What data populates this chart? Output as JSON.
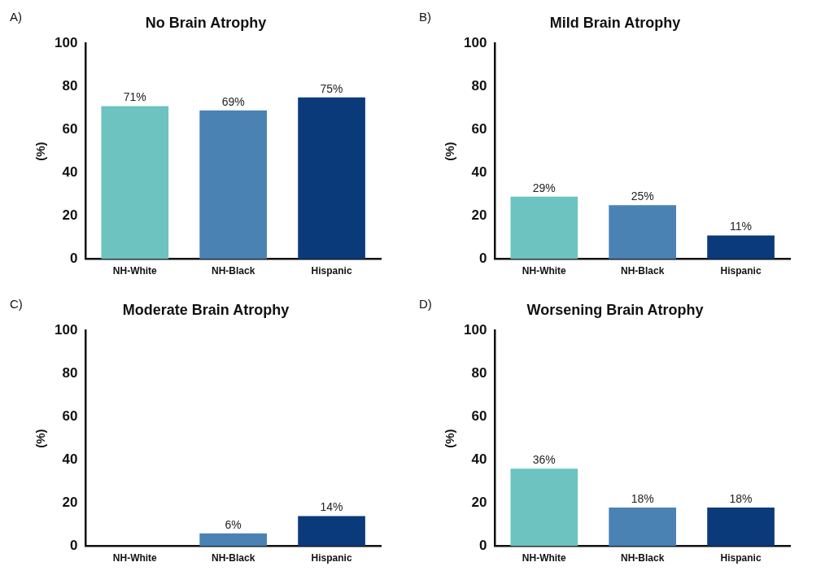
{
  "chart_data": [
    {
      "type": "bar",
      "title": "No Brain Atrophy",
      "annotations": [
        "A)"
      ],
      "ylabel": "(%)",
      "categories": [
        "NH-White",
        "NH-Black",
        "Hispanic"
      ],
      "values": [
        71,
        69,
        75
      ],
      "colors": [
        "#6cc3bf",
        "#4a82b4",
        "#0b3a7a"
      ],
      "value_labels": [
        "71%",
        "69%",
        "75%"
      ],
      "ylim": [
        0,
        100
      ],
      "yticks": [
        0,
        20,
        40,
        60,
        80,
        100
      ]
    },
    {
      "type": "bar",
      "title": "Mild Brain Atrophy",
      "annotations": [
        "B)"
      ],
      "ylabel": "(%)",
      "categories": [
        "NH-White",
        "NH-Black",
        "Hispanic"
      ],
      "values": [
        29,
        25,
        11
      ],
      "colors": [
        "#6cc3bf",
        "#4a82b4",
        "#0b3a7a"
      ],
      "value_labels": [
        "29%",
        "25%",
        "11%"
      ],
      "ylim": [
        0,
        100
      ],
      "yticks": [
        0,
        20,
        40,
        60,
        80,
        100
      ]
    },
    {
      "type": "bar",
      "title": "Moderate Brain Atrophy",
      "annotations": [
        "C)"
      ],
      "ylabel": "(%)",
      "categories": [
        "NH-White",
        "NH-Black",
        "Hispanic"
      ],
      "values": [
        0,
        6,
        14
      ],
      "colors": [
        "#6cc3bf",
        "#4a82b4",
        "#0b3a7a"
      ],
      "value_labels": [
        null,
        "6%",
        "14%"
      ],
      "ylim": [
        0,
        100
      ],
      "yticks": [
        0,
        20,
        40,
        60,
        80,
        100
      ]
    },
    {
      "type": "bar",
      "title": "Worsening Brain Atrophy",
      "annotations": [
        "D)"
      ],
      "ylabel": "(%)",
      "categories": [
        "NH-White",
        "NH-Black",
        "Hispanic"
      ],
      "values": [
        36,
        18,
        18
      ],
      "colors": [
        "#6cc3bf",
        "#4a82b4",
        "#0b3a7a"
      ],
      "value_labels": [
        "36%",
        "18%",
        "18%"
      ],
      "ylim": [
        0,
        100
      ],
      "yticks": [
        0,
        20,
        40,
        60,
        80,
        100
      ]
    }
  ]
}
